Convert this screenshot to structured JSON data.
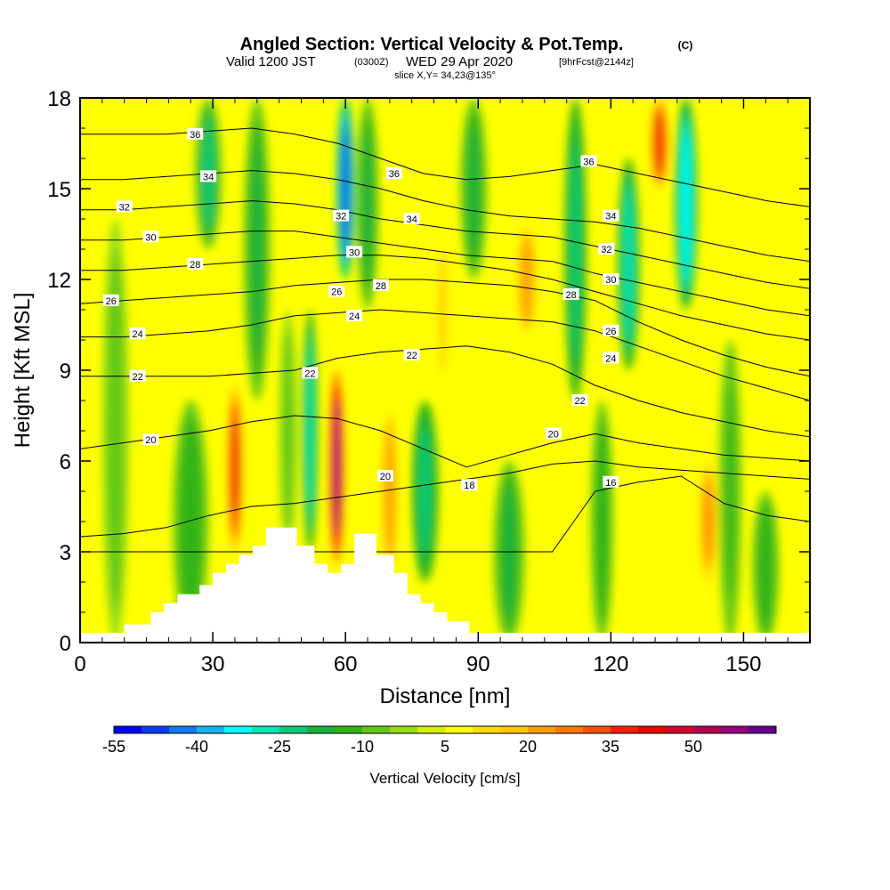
{
  "title": {
    "main": "Angled Section: Vertical Velocity & Pot.Temp.",
    "copyright": "(C)",
    "valid_prefix": "Valid 1200 JST",
    "utc": "(0300Z)",
    "valid_date": "WED 29 Apr 2020",
    "forecast": "[9hrFcst@2144z]",
    "slice": "slice X,Y= 34,23@135°"
  },
  "chart_data": {
    "type": "heatmap",
    "xlabel": "Distance [nm]",
    "ylabel": "Height [Kft MSL]",
    "xlim": [
      0,
      165
    ],
    "ylim": [
      0,
      18
    ],
    "x_ticks": [
      0,
      30,
      60,
      90,
      120,
      150
    ],
    "y_ticks": [
      0,
      3,
      6,
      9,
      12,
      15,
      18
    ],
    "colorbar": {
      "label": "Vertical Velocity [cm/s]",
      "levels": [
        -55,
        -50,
        -45,
        -40,
        -35,
        -30,
        -25,
        -20,
        -15,
        -10,
        -5,
        0,
        5,
        10,
        15,
        20,
        25,
        30,
        35,
        40,
        45,
        50,
        55,
        60
      ],
      "tick_labels": [
        "-55",
        "-40",
        "-25",
        "-10",
        "5",
        "20",
        "35",
        "50"
      ],
      "colors": [
        "#0000ff",
        "#0a3cf5",
        "#1478f0",
        "#14b4f0",
        "#00ffff",
        "#00e6b4",
        "#00cd78",
        "#14b43c",
        "#32b414",
        "#64c814",
        "#96dc14",
        "#d2f000",
        "#ffff00",
        "#ffdc00",
        "#ffc800",
        "#ffa000",
        "#ff7800",
        "#ff5000",
        "#ff1e00",
        "#eb0000",
        "#d2002d",
        "#b40050",
        "#960078",
        "#64008c"
      ]
    },
    "vertical_velocity_bands": [
      {
        "x": 8,
        "w": 6,
        "v": -8,
        "y0": 0,
        "y1": 14
      },
      {
        "x": 25,
        "w": 8,
        "v": -15,
        "y0": 0,
        "y1": 8
      },
      {
        "x": 29,
        "w": 6,
        "v": -22,
        "y0": 13,
        "y1": 18
      },
      {
        "x": 35,
        "w": 3.5,
        "v": 42,
        "y0": 3,
        "y1": 8.5
      },
      {
        "x": 40,
        "w": 6,
        "v": -18,
        "y0": 8,
        "y1": 18
      },
      {
        "x": 47,
        "w": 4,
        "v": -10,
        "y0": 3,
        "y1": 11
      },
      {
        "x": 52,
        "w": 3.5,
        "v": -28,
        "y0": 3,
        "y1": 11
      },
      {
        "x": 58,
        "w": 3.2,
        "v": 58,
        "y0": 2.6,
        "y1": 9
      },
      {
        "x": 60,
        "w": 4,
        "v": -48,
        "y0": 12,
        "y1": 18
      },
      {
        "x": 65,
        "w": 5,
        "v": -20,
        "y0": 11,
        "y1": 18
      },
      {
        "x": 70,
        "w": 5,
        "v": 22,
        "y0": 2,
        "y1": 8
      },
      {
        "x": 78,
        "w": 6,
        "v": -25,
        "y0": 2,
        "y1": 8
      },
      {
        "x": 82,
        "w": 6,
        "v": 12,
        "y0": 8,
        "y1": 14
      },
      {
        "x": 89,
        "w": 6,
        "v": -18,
        "y0": 12,
        "y1": 18
      },
      {
        "x": 97,
        "w": 7,
        "v": -20,
        "y0": 0,
        "y1": 6
      },
      {
        "x": 101,
        "w": 6,
        "v": 22,
        "y0": 10,
        "y1": 14
      },
      {
        "x": 112,
        "w": 5,
        "v": -25,
        "y0": 8,
        "y1": 18
      },
      {
        "x": 118,
        "w": 5,
        "v": -15,
        "y0": 0,
        "y1": 8
      },
      {
        "x": 124,
        "w": 5,
        "v": -28,
        "y0": 9,
        "y1": 16
      },
      {
        "x": 131,
        "w": 4,
        "v": 40,
        "y0": 15,
        "y1": 18
      },
      {
        "x": 137,
        "w": 5,
        "v": -35,
        "y0": 11,
        "y1": 18
      },
      {
        "x": 142,
        "w": 4,
        "v": 25,
        "y0": 2,
        "y1": 6
      },
      {
        "x": 147,
        "w": 5,
        "v": -12,
        "y0": 0,
        "y1": 10
      },
      {
        "x": 155,
        "w": 6,
        "v": -15,
        "y0": 0,
        "y1": 5
      }
    ],
    "terrain": [
      [
        10,
        0.6
      ],
      [
        16,
        1
      ],
      [
        19,
        1.3
      ],
      [
        22,
        1.6
      ],
      [
        27,
        1.9
      ],
      [
        30,
        2.3
      ],
      [
        33,
        2.6
      ],
      [
        36,
        2.9
      ],
      [
        39,
        3.2
      ],
      [
        42,
        3.8
      ],
      [
        49,
        3.2
      ],
      [
        53,
        2.6
      ],
      [
        56,
        2.3
      ],
      [
        59,
        2.6
      ],
      [
        62,
        3.6
      ],
      [
        67,
        2.9
      ],
      [
        71,
        2.3
      ],
      [
        74,
        1.6
      ],
      [
        77,
        1.3
      ],
      [
        80,
        1
      ],
      [
        83,
        0.7
      ],
      [
        88,
        0.3
      ],
      [
        165,
        0.3
      ]
    ],
    "contour_labels": [
      {
        "text": "36",
        "x": 26,
        "y": 16.8
      },
      {
        "text": "34",
        "x": 29,
        "y": 15.4
      },
      {
        "text": "32",
        "x": 10,
        "y": 14.4
      },
      {
        "text": "30",
        "x": 16,
        "y": 13.4
      },
      {
        "text": "28",
        "x": 26,
        "y": 12.5
      },
      {
        "text": "26",
        "x": 7,
        "y": 11.3
      },
      {
        "text": "24",
        "x": 13,
        "y": 10.2
      },
      {
        "text": "22",
        "x": 13,
        "y": 8.8
      },
      {
        "text": "20",
        "x": 16,
        "y": 6.7
      },
      {
        "text": "22",
        "x": 52,
        "y": 8.9
      },
      {
        "text": "36",
        "x": 71,
        "y": 15.5
      },
      {
        "text": "32",
        "x": 59,
        "y": 14.1
      },
      {
        "text": "34",
        "x": 75,
        "y": 14
      },
      {
        "text": "30",
        "x": 62,
        "y": 12.9
      },
      {
        "text": "28",
        "x": 68,
        "y": 11.8
      },
      {
        "text": "26",
        "x": 58,
        "y": 11.6
      },
      {
        "text": "24",
        "x": 62,
        "y": 10.8
      },
      {
        "text": "22",
        "x": 75,
        "y": 9.5
      },
      {
        "text": "20",
        "x": 69,
        "y": 5.5
      },
      {
        "text": "18",
        "x": 88,
        "y": 5.2
      },
      {
        "text": "36",
        "x": 115,
        "y": 15.9
      },
      {
        "text": "34",
        "x": 120,
        "y": 14.1
      },
      {
        "text": "32",
        "x": 119,
        "y": 13
      },
      {
        "text": "30",
        "x": 120,
        "y": 12
      },
      {
        "text": "28",
        "x": 111,
        "y": 11.5
      },
      {
        "text": "26",
        "x": 120,
        "y": 10.3
      },
      {
        "text": "24",
        "x": 120,
        "y": 9.4
      },
      {
        "text": "22",
        "x": 113,
        "y": 8
      },
      {
        "text": "20",
        "x": 107,
        "y": 6.9
      },
      {
        "text": "16",
        "x": 120,
        "y": 5.3
      }
    ],
    "isentropes": [
      {
        "theta": 16,
        "y": [
          3,
          3,
          3,
          3,
          3,
          3,
          3,
          3,
          3,
          3,
          3,
          3,
          5,
          5.3,
          5.5,
          4.6,
          4.2,
          4
        ]
      },
      {
        "theta": 18,
        "y": [
          3.5,
          3.6,
          3.8,
          4.2,
          4.5,
          4.6,
          4.8,
          5,
          5.2,
          5.4,
          5.6,
          5.9,
          6,
          5.8,
          5.7,
          5.6,
          5.5,
          5.4
        ]
      },
      {
        "theta": 20,
        "y": [
          6.4,
          6.6,
          6.8,
          7,
          7.3,
          7.5,
          7.4,
          7,
          6.4,
          5.8,
          6.2,
          6.6,
          6.9,
          6.6,
          6.4,
          6.2,
          6.1,
          6
        ]
      },
      {
        "theta": 22,
        "y": [
          8.8,
          8.8,
          8.8,
          8.8,
          8.9,
          9,
          9.4,
          9.6,
          9.7,
          9.8,
          9.6,
          9.2,
          8.5,
          8,
          7.6,
          7.3,
          7,
          6.8
        ]
      },
      {
        "theta": 24,
        "y": [
          10.1,
          10.1,
          10.2,
          10.3,
          10.5,
          10.8,
          10.9,
          11,
          10.9,
          10.8,
          10.7,
          10.6,
          10.3,
          9.8,
          9.3,
          8.8,
          8.4,
          8
        ]
      },
      {
        "theta": 26,
        "y": [
          11.2,
          11.3,
          11.4,
          11.5,
          11.6,
          11.8,
          11.9,
          12,
          12,
          11.9,
          11.8,
          11.6,
          11.3,
          10.6,
          10,
          9.5,
          9.1,
          8.8
        ]
      },
      {
        "theta": 28,
        "y": [
          12.3,
          12.3,
          12.4,
          12.5,
          12.6,
          12.7,
          12.8,
          12.8,
          12.7,
          12.5,
          12.3,
          12,
          11.6,
          11.2,
          10.8,
          10.5,
          10.2,
          10
        ]
      },
      {
        "theta": 30,
        "y": [
          13.3,
          13.3,
          13.4,
          13.5,
          13.6,
          13.6,
          13.4,
          13.2,
          13,
          12.8,
          12.7,
          12.6,
          12.2,
          11.9,
          11.6,
          11.3,
          11,
          10.8
        ]
      },
      {
        "theta": 32,
        "y": [
          14.3,
          14.3,
          14.4,
          14.5,
          14.6,
          14.5,
          14.3,
          14,
          13.8,
          13.6,
          13.5,
          13.4,
          13.1,
          12.8,
          12.5,
          12.2,
          11.9,
          11.7
        ]
      },
      {
        "theta": 34,
        "y": [
          15.3,
          15.3,
          15.4,
          15.5,
          15.6,
          15.5,
          15.3,
          15,
          14.6,
          14.3,
          14.1,
          14,
          13.9,
          13.7,
          13.4,
          13.1,
          12.8,
          12.6
        ]
      },
      {
        "theta": 36,
        "y": [
          16.8,
          16.8,
          16.8,
          16.9,
          17,
          16.8,
          16.5,
          16,
          15.5,
          15.3,
          15.4,
          15.6,
          15.8,
          15.5,
          15.2,
          14.9,
          14.6,
          14.4
        ]
      }
    ]
  }
}
